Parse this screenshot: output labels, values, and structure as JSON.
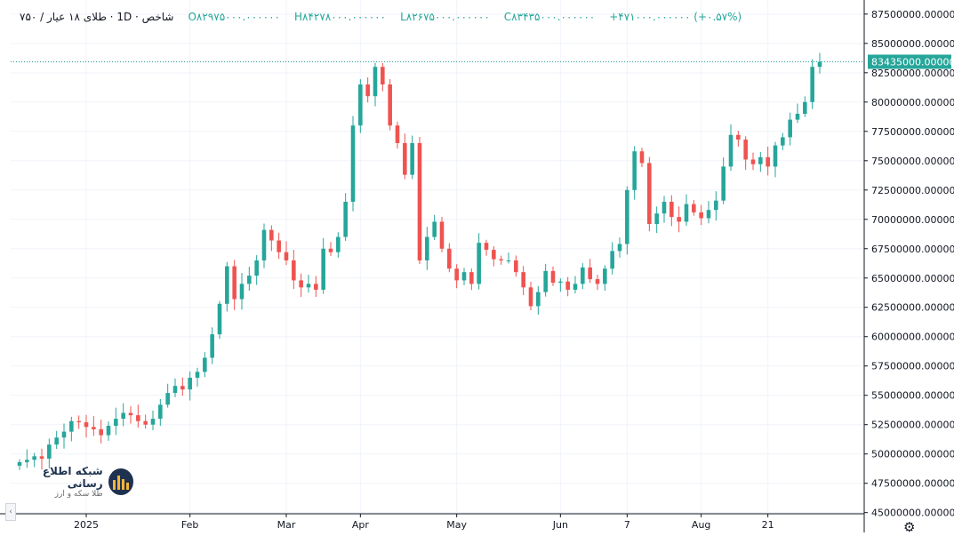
{
  "legend": {
    "title": "شاخص · 1D · طلای ۱۸ عیار / ۷۵۰",
    "open": "O۸۲۹۷۵۰۰۰.۰۰۰۰۰۰",
    "high": "H۸۴۲۷۸۰۰۰.۰۰۰۰۰۰",
    "low": "L۸۲۶۷۵۰۰۰.۰۰۰۰۰۰",
    "close": "C۸۳۴۳۵۰۰۰.۰۰۰۰۰۰",
    "change": "+۴۷۱۰۰۰.۰۰۰۰۰۰ (+۰.۵۷%)"
  },
  "logo": {
    "name": "شبکه اطلاع رسانی",
    "subtitle": "طلا سکه و ارز"
  },
  "colors": {
    "up": "#26a69a",
    "down": "#ef5350",
    "grid": "#f0f3fa",
    "axis": "#131722",
    "price_line": "#26a69a"
  },
  "chart_data": {
    "type": "candlestick",
    "symbol": "طلای ۱۸ عیار / ۷۵۰",
    "interval": "1D",
    "last_price_label": "83435000.0000000",
    "last_price": 83435000,
    "y_ticks": [
      "45000000.0000000",
      "47500000.0000000",
      "50000000.0000000",
      "52500000.0000000",
      "55000000.0000000",
      "57500000.0000000",
      "60000000.0000000",
      "62500000.0000000",
      "65000000.0000000",
      "67500000.0000000",
      "70000000.0000000",
      "72500000.0000000",
      "75000000.0000000",
      "77500000.0000000",
      "80000000.0000000",
      "82500000.0000000",
      "85000000.0000000",
      "87500000.0000000"
    ],
    "y_tick_values": [
      45000000,
      47500000,
      50000000,
      52500000,
      55000000,
      57500000,
      60000000,
      62500000,
      65000000,
      67500000,
      70000000,
      72500000,
      75000000,
      77500000,
      80000000,
      82500000,
      85000000,
      87500000
    ],
    "ylim": [
      44900000,
      88700000
    ],
    "x_ticks": [
      {
        "label": "2025",
        "index": 9
      },
      {
        "label": "Feb",
        "index": 23
      },
      {
        "label": "Mar",
        "index": 36
      },
      {
        "label": "Apr",
        "index": 46
      },
      {
        "label": "May",
        "index": 59
      },
      {
        "label": "Jun",
        "index": 73
      },
      {
        "label": "7",
        "index": 82
      },
      {
        "label": "Aug",
        "index": 92
      },
      {
        "label": "21",
        "index": 101
      }
    ],
    "closes": [
      49300000,
      49500000,
      49800000,
      49600000,
      50800000,
      51400000,
      51900000,
      52800000,
      52700000,
      52300000,
      52100000,
      51600000,
      52400000,
      53000000,
      53500000,
      53300000,
      52800000,
      52500000,
      53000000,
      54200000,
      55200000,
      55800000,
      55500000,
      56500000,
      57000000,
      58200000,
      60200000,
      62800000,
      66000000,
      63200000,
      64500000,
      65200000,
      66500000,
      69100000,
      68200000,
      67200000,
      66500000,
      64800000,
      64200000,
      64500000,
      64000000,
      67500000,
      67200000,
      68500000,
      71500000,
      78000000,
      81500000,
      80500000,
      83000000,
      81500000,
      78000000,
      76500000,
      73800000,
      76500000,
      66500000,
      68500000,
      69800000,
      67500000,
      65800000,
      64800000,
      65500000,
      64500000,
      68000000,
      67400000,
      66600000,
      66500000,
      66500000,
      65500000,
      64200000,
      62600000,
      63800000,
      65600000,
      64600000,
      64700000,
      64000000,
      64500000,
      65900000,
      64900000,
      64500000,
      65800000,
      67300000,
      67900000,
      72500000,
      75800000,
      74800000,
      69600000,
      70500000,
      71500000,
      70200000,
      69800000,
      71300000,
      70600000,
      70100000,
      70800000,
      71600000,
      74500000,
      77200000,
      76800000,
      75100000,
      74700000,
      75300000,
      74500000,
      76300000,
      77000000,
      78500000,
      79000000,
      80000000,
      83000000,
      83435000
    ]
  }
}
